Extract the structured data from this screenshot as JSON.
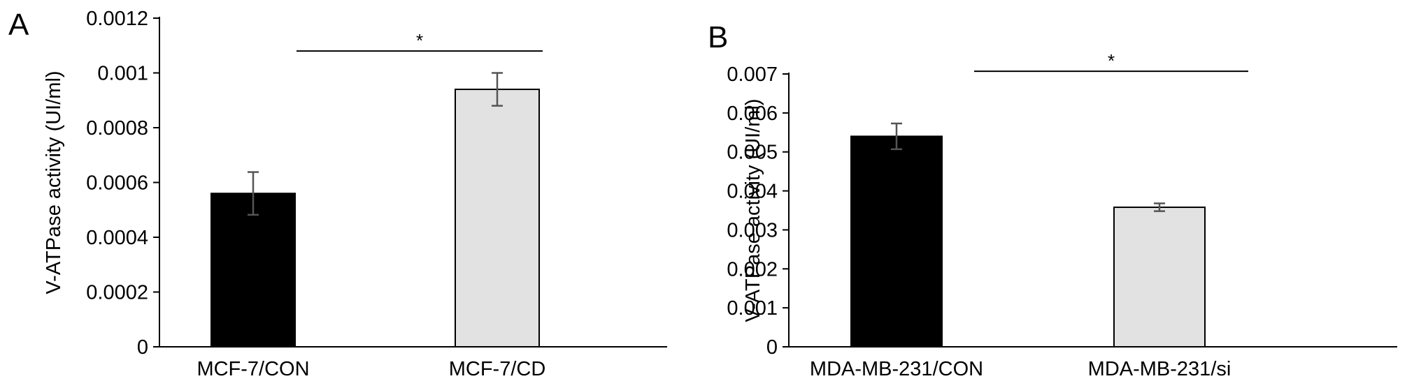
{
  "chart_data": [
    {
      "panel_label": "A",
      "type": "bar",
      "categories": [
        "MCF-7/CON",
        "MCF-7/CD"
      ],
      "values": [
        0.00056,
        0.00094
      ],
      "errors": [
        7.8e-05,
        6e-05
      ],
      "bar_colors": [
        "#000000",
        "#e2e2e2"
      ],
      "ylabel": "V-ATPase activity (UI/ml)",
      "xlabel": "",
      "ylim": [
        0,
        0.0012
      ],
      "yticks": [
        "0",
        "0.0002",
        "0.0004",
        "0.0006",
        "0.0008",
        "0.001",
        "0.0012"
      ],
      "ytick_values": [
        0,
        0.0002,
        0.0004,
        0.0006,
        0.0008,
        0.001,
        0.0012
      ],
      "significance": {
        "from": 0,
        "to": 1,
        "label": "*",
        "y": 0.00108
      },
      "grid": false
    },
    {
      "panel_label": "B",
      "type": "bar",
      "categories": [
        "MDA-MB-231/CON",
        "MDA-MB-231/si"
      ],
      "values": [
        0.0054,
        0.00358
      ],
      "errors": [
        0.00033,
        0.0001
      ],
      "bar_colors": [
        "#000000",
        "#e2e2e2"
      ],
      "ylabel": "V-ATPase activity (UI/ml)",
      "xlabel": "",
      "ylim": [
        0,
        0.007
      ],
      "yticks": [
        "0",
        "0.001",
        "0.002",
        "0.003",
        "0.004",
        "0.005",
        "0.006",
        "0.007"
      ],
      "ytick_values": [
        0,
        0.001,
        0.002,
        0.003,
        0.004,
        0.005,
        0.006,
        0.007
      ],
      "significance": {
        "from": 0,
        "to": 1,
        "label": "*",
        "y": 0.00707
      },
      "grid": false
    }
  ]
}
